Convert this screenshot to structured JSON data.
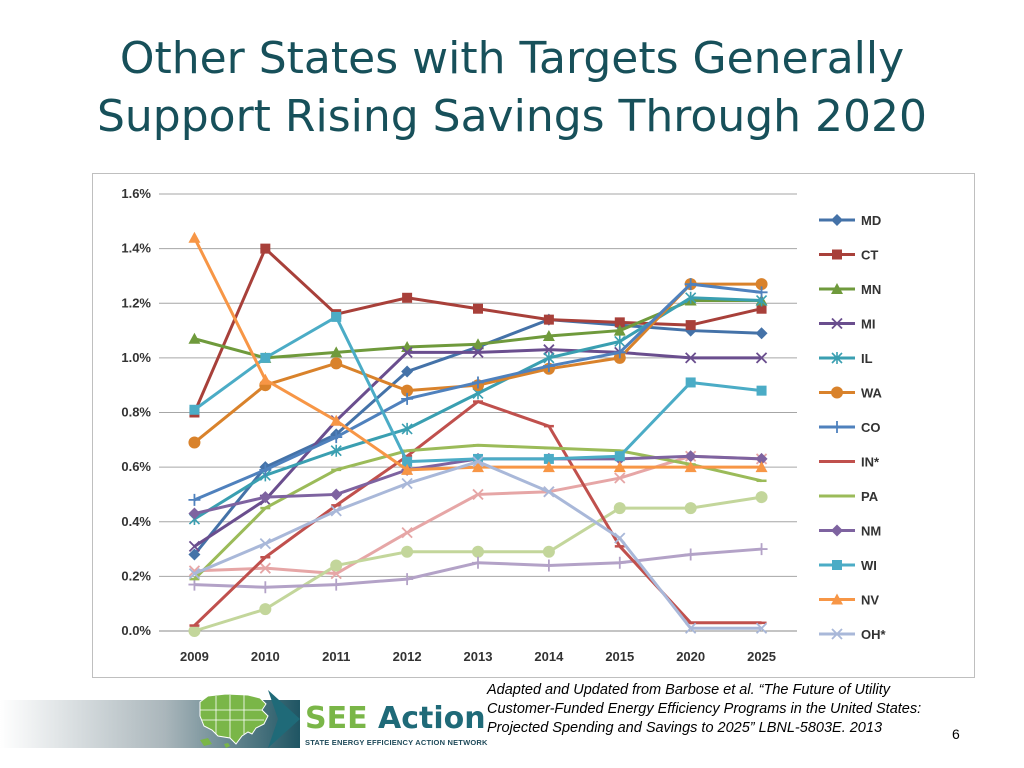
{
  "slide": {
    "title_line1": "Other States with Targets Generally",
    "title_line2": "Support Rising Savings Through 2020",
    "citation": "Adapted and Updated from Barbose et al. “The Future of Utility Customer-Funded Energy Efficiency Programs in the United States: Projected Spending and Savings to 2025” LBNL-5803E. 2013",
    "page_number": "6",
    "logo": {
      "word1": "SEE",
      "word2": "Action",
      "subtitle": "STATE ENERGY EFFICIENCY ACTION NETWORK",
      "map_icon": "us-map-icon",
      "arrow_icon": "arrow-right-icon"
    }
  },
  "chart_data": {
    "type": "line",
    "categories": [
      "2009",
      "2010",
      "2011",
      "2012",
      "2013",
      "2014",
      "2015",
      "2020",
      "2025"
    ],
    "ylim": [
      0,
      1.6
    ],
    "y_ticks": [
      "0.0%",
      "0.2%",
      "0.4%",
      "0.6%",
      "0.8%",
      "1.0%",
      "1.2%",
      "1.4%",
      "1.6%"
    ],
    "y_unit": "%",
    "grid": "horizontal",
    "legend_position": "right",
    "series": [
      {
        "name": "MD",
        "color": "#4472a8",
        "marker": "diamond",
        "values": [
          0.28,
          0.6,
          0.72,
          0.95,
          1.04,
          1.14,
          1.12,
          1.1,
          1.09
        ]
      },
      {
        "name": "CT",
        "color": "#a8403a",
        "marker": "square",
        "values": [
          0.8,
          1.4,
          1.16,
          1.22,
          1.18,
          1.14,
          1.13,
          1.12,
          1.18
        ]
      },
      {
        "name": "MN",
        "color": "#6f9a3c",
        "marker": "triangle",
        "values": [
          1.07,
          1.0,
          1.02,
          1.04,
          1.05,
          1.08,
          1.1,
          1.21,
          1.21
        ]
      },
      {
        "name": "MI",
        "color": "#6a4e8e",
        "marker": "x",
        "values": [
          0.31,
          0.48,
          0.77,
          1.02,
          1.02,
          1.03,
          1.02,
          1.0,
          1.0
        ]
      },
      {
        "name": "IL",
        "color": "#3a9fb1",
        "marker": "star",
        "values": [
          0.41,
          0.57,
          0.66,
          0.74,
          0.87,
          1.0,
          1.06,
          1.22,
          1.21
        ]
      },
      {
        "name": "WA",
        "color": "#d9822b",
        "marker": "circle",
        "values": [
          0.69,
          0.9,
          0.98,
          0.88,
          0.9,
          0.96,
          1.0,
          1.27,
          1.27
        ]
      },
      {
        "name": "CO",
        "color": "#4f81bd",
        "marker": "plus",
        "values": [
          0.48,
          0.59,
          0.71,
          0.85,
          0.91,
          0.97,
          1.02,
          1.27,
          1.24
        ]
      },
      {
        "name": "IN*",
        "color": "#c0504d",
        "marker": "dash",
        "values": [
          0.02,
          0.27,
          0.46,
          0.64,
          0.84,
          0.75,
          0.31,
          0.03,
          0.03
        ]
      },
      {
        "name": "PA",
        "color": "#9bbb59",
        "marker": "dash",
        "values": [
          0.19,
          0.45,
          0.59,
          0.66,
          0.68,
          0.67,
          0.66,
          0.61,
          0.55
        ]
      },
      {
        "name": "NM",
        "color": "#7e63a0",
        "marker": "diamond",
        "values": [
          0.43,
          0.49,
          0.5,
          0.59,
          0.63,
          0.63,
          0.63,
          0.64,
          0.63
        ]
      },
      {
        "name": "WI",
        "color": "#4bacc6",
        "marker": "square",
        "values": [
          0.81,
          1.0,
          1.15,
          0.62,
          0.63,
          0.63,
          0.64,
          0.91,
          0.88
        ]
      },
      {
        "name": "NV",
        "color": "#f79646",
        "marker": "triangle",
        "values": [
          1.44,
          0.92,
          0.77,
          0.59,
          0.6,
          0.6,
          0.6,
          0.6,
          0.6
        ]
      },
      {
        "name": "OH*",
        "color": "#a9b8d9",
        "marker": "x",
        "values": [
          0.21,
          0.32,
          0.44,
          0.54,
          0.62,
          0.51,
          0.34,
          0.01,
          0.01
        ]
      },
      {
        "color": "#e6a6a6",
        "marker": "x",
        "values": [
          0.22,
          0.23,
          0.21,
          0.36,
          0.5,
          0.51,
          0.56,
          0.64,
          0.63
        ]
      },
      {
        "color": "#c3d69b",
        "marker": "circle",
        "values": [
          0.0,
          0.08,
          0.24,
          0.29,
          0.29,
          0.29,
          0.45,
          0.45,
          0.49
        ]
      },
      {
        "color": "#b3a2c7",
        "marker": "plus",
        "values": [
          0.17,
          0.16,
          0.17,
          0.19,
          0.25,
          0.24,
          0.25,
          0.28,
          0.3
        ]
      }
    ]
  }
}
